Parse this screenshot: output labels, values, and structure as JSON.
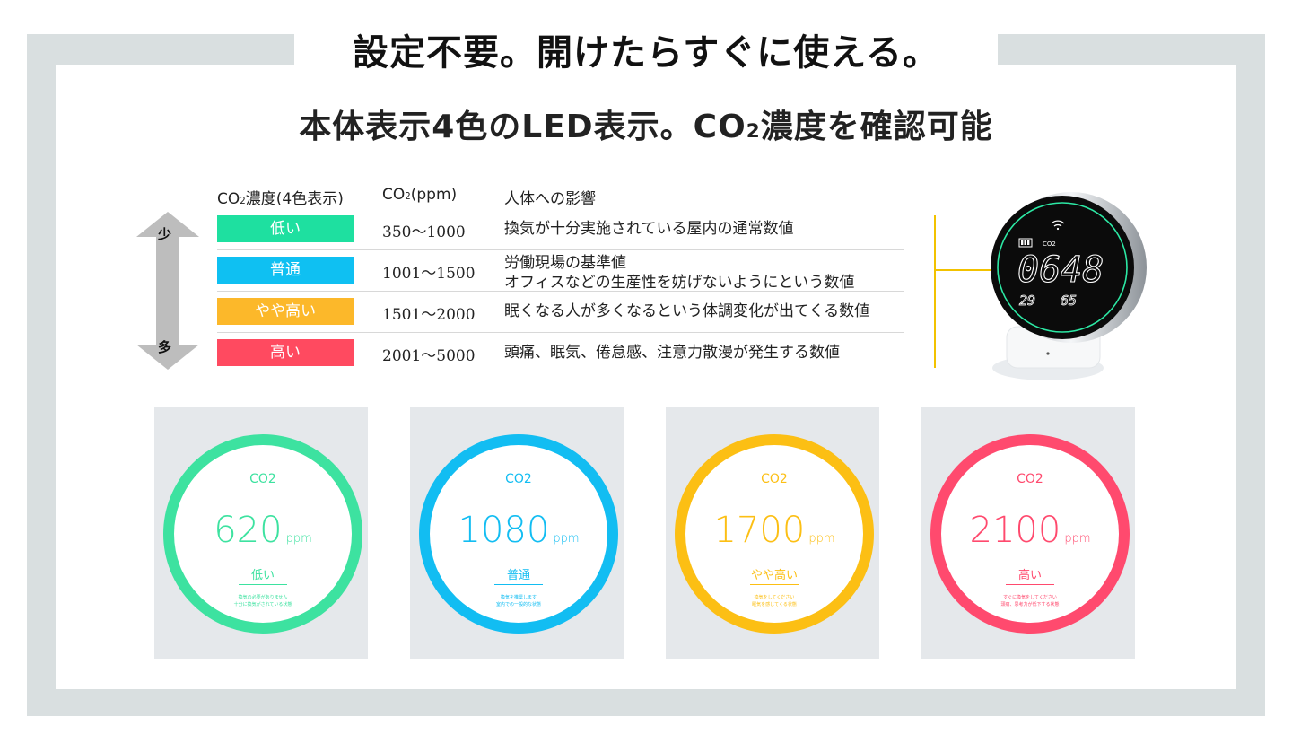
{
  "title": "設定不要。開けたらすぐに使える。",
  "subtitle": {
    "prefix": "本体表示4色のLED表示。CO",
    "sub": "2",
    "suffix": "濃度を確認可能"
  },
  "table": {
    "headers": {
      "level": {
        "prefix": "CO",
        "sub": "2",
        "suffix": "濃度(4色表示)"
      },
      "ppm": {
        "prefix": "CO",
        "sub": "2",
        "suffix": "(ppm)"
      },
      "effect": "人体への影響"
    },
    "arrow": {
      "top_label": "少",
      "bottom_label": "多"
    },
    "rows": [
      {
        "label": "低い",
        "color": "#1ee0a0",
        "ppm": "350〜1000",
        "effect_1": "換気が十分実施されている屋内の通常数値",
        "effect_2": ""
      },
      {
        "label": "普通",
        "color": "#0fc0f2",
        "ppm": "1001〜1500",
        "effect_1": "労働現場の基準値",
        "effect_2": "オフィスなどの生産性を妨げないようにという数値"
      },
      {
        "label": "やや高い",
        "color": "#fcb82a",
        "ppm": "1501〜2000",
        "effect_1": "眠くなる人が多くなるという体調変化が出てくる数値",
        "effect_2": ""
      },
      {
        "label": "高い",
        "color": "#ff4a60",
        "ppm": "2001〜5000",
        "effect_1": "頭痛、眠気、倦怠感、注意力散漫が発生する数値",
        "effect_2": ""
      }
    ]
  },
  "device_display": {
    "co2_label": "CO2",
    "reading": "0648",
    "temperature": "29",
    "humidity": "65"
  },
  "cards": [
    {
      "co2_label": "CO2",
      "value": "620",
      "unit": "ppm",
      "level": "低い",
      "color": "#3de2a0",
      "note_1": "換気の必要がありません",
      "note_2": "十分に換気がされている状態"
    },
    {
      "co2_label": "CO2",
      "value": "1080",
      "unit": "ppm",
      "level": "普通",
      "color": "#12bdf2",
      "note_1": "換気を推奨します",
      "note_2": "室内での一般的な状態"
    },
    {
      "co2_label": "CO2",
      "value": "1700",
      "unit": "ppm",
      "level": "やや高い",
      "color": "#fcbf14",
      "note_1": "換気をしてください",
      "note_2": "眠気を感じてくる状態"
    },
    {
      "co2_label": "CO2",
      "value": "2100",
      "unit": "ppm",
      "level": "高い",
      "color": "#ff4a6e",
      "note_1": "すぐに換気をしてください",
      "note_2": "頭痛、思考力が低下する状態"
    }
  ]
}
